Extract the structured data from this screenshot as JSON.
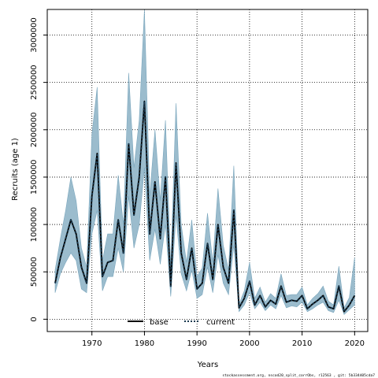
{
  "chart_data": {
    "type": "line",
    "xlabel": "Years",
    "ylabel": "Recruits (age 1)",
    "xlim": [
      1961.5,
      2022.5
    ],
    "ylim": [
      -130000,
      3270000
    ],
    "xticks": [
      1970,
      1980,
      1990,
      2000,
      2010,
      2020
    ],
    "yticks": [
      0,
      500000,
      1000000,
      1500000,
      2000000,
      2500000,
      3000000
    ],
    "grid": true,
    "legend_position": "bottom-center",
    "colors": {
      "band": "#9bbccd",
      "band_edge": "#7aa6bd",
      "base": "#000000",
      "current": "#1a3a50"
    },
    "x": [
      1963,
      1964,
      1965,
      1966,
      1967,
      1968,
      1969,
      1970,
      1971,
      1972,
      1973,
      1974,
      1975,
      1976,
      1977,
      1978,
      1979,
      1980,
      1981,
      1982,
      1983,
      1984,
      1985,
      1986,
      1987,
      1988,
      1989,
      1990,
      1991,
      1992,
      1993,
      1994,
      1995,
      1996,
      1997,
      1998,
      1999,
      2000,
      2001,
      2002,
      2003,
      2004,
      2005,
      2006,
      2007,
      2008,
      2009,
      2010,
      2011,
      2012,
      2013,
      2014,
      2015,
      2016,
      2017,
      2018,
      2019,
      2020
    ],
    "series": [
      {
        "name": "base",
        "style": "solid",
        "values": [
          380000,
          650000,
          850000,
          1050000,
          900000,
          550000,
          380000,
          1300000,
          1750000,
          450000,
          600000,
          620000,
          1050000,
          700000,
          1850000,
          1100000,
          1500000,
          2300000,
          900000,
          1450000,
          850000,
          1500000,
          350000,
          1650000,
          700000,
          420000,
          750000,
          320000,
          380000,
          800000,
          420000,
          1000000,
          550000,
          380000,
          1150000,
          120000,
          220000,
          400000,
          150000,
          250000,
          130000,
          200000,
          160000,
          350000,
          180000,
          200000,
          190000,
          250000,
          110000,
          160000,
          200000,
          250000,
          130000,
          110000,
          350000,
          80000,
          150000,
          250000
        ]
      },
      {
        "name": "current",
        "style": "dotted",
        "values": [
          380000,
          650000,
          850000,
          1050000,
          900000,
          550000,
          380000,
          1300000,
          1750000,
          450000,
          600000,
          620000,
          1050000,
          700000,
          1850000,
          1100000,
          1500000,
          2300000,
          900000,
          1450000,
          850000,
          1500000,
          350000,
          1650000,
          700000,
          420000,
          750000,
          320000,
          380000,
          800000,
          420000,
          1000000,
          550000,
          380000,
          1150000,
          120000,
          220000,
          400000,
          150000,
          250000,
          130000,
          200000,
          160000,
          350000,
          180000,
          200000,
          190000,
          250000,
          110000,
          160000,
          200000,
          250000,
          130000,
          110000,
          350000,
          80000,
          150000,
          250000
        ]
      }
    ],
    "band": {
      "lower": [
        280000,
        480000,
        600000,
        700000,
        620000,
        320000,
        280000,
        900000,
        1150000,
        300000,
        450000,
        450000,
        750000,
        500000,
        1300000,
        750000,
        1000000,
        1600000,
        620000,
        950000,
        580000,
        1000000,
        240000,
        1100000,
        480000,
        300000,
        520000,
        220000,
        260000,
        550000,
        280000,
        680000,
        380000,
        260000,
        780000,
        80000,
        150000,
        280000,
        110000,
        180000,
        90000,
        150000,
        110000,
        250000,
        120000,
        140000,
        130000,
        180000,
        80000,
        110000,
        150000,
        180000,
        90000,
        70000,
        200000,
        50000,
        100000,
        150000
      ],
      "upper": [
        520000,
        850000,
        1150000,
        1500000,
        1250000,
        750000,
        550000,
        1950000,
        2450000,
        620000,
        900000,
        900000,
        1520000,
        1000000,
        2600000,
        1600000,
        2100000,
        3270000,
        1300000,
        2000000,
        1250000,
        2100000,
        560000,
        2280000,
        1000000,
        600000,
        1050000,
        450000,
        540000,
        1120000,
        600000,
        1380000,
        780000,
        520000,
        1620000,
        160000,
        300000,
        600000,
        220000,
        340000,
        180000,
        270000,
        220000,
        480000,
        250000,
        260000,
        260000,
        340000,
        150000,
        220000,
        270000,
        350000,
        190000,
        150000,
        560000,
        120000,
        230000,
        650000
      ]
    },
    "legend": [
      "base",
      "current"
    ]
  },
  "footer": "stockassessment.org, nscod20_split_corrObs, r12563 , git: 5b334405cda7"
}
